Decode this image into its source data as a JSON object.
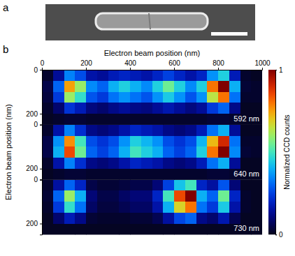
{
  "panel_labels": [
    "a",
    "b"
  ],
  "chart_data": {
    "type": "heatmap",
    "x_label": "Electron beam position (nm)",
    "y_label": "Electron beam position (nm)",
    "xlim": [
      0,
      1000
    ],
    "xticks": [
      0,
      200,
      400,
      600,
      800,
      1000
    ],
    "ylim": [
      0,
      250
    ],
    "yticks": [
      0,
      200
    ],
    "x": [
      25,
      75,
      125,
      175,
      225,
      275,
      325,
      375,
      425,
      475,
      525,
      575,
      625,
      675,
      725,
      775,
      825,
      875,
      925,
      975
    ],
    "y": [
      25,
      75,
      125,
      175,
      225
    ],
    "colorbar": {
      "label": "Normalized CCD counts",
      "range": [
        0,
        1
      ],
      "ticks": [
        0,
        1
      ]
    },
    "panels": [
      {
        "title": "592 nm",
        "cells": [
          [
            0.02,
            0.14,
            0.34,
            0.27,
            0.16,
            0.14,
            0.18,
            0.2,
            0.18,
            0.16,
            0.2,
            0.25,
            0.2,
            0.16,
            0.2,
            0.36,
            0.45,
            0.18,
            0.02,
            0.01
          ],
          [
            0.05,
            0.3,
            0.75,
            0.6,
            0.35,
            0.3,
            0.4,
            0.45,
            0.4,
            0.35,
            0.45,
            0.55,
            0.45,
            0.35,
            0.45,
            0.8,
            1.0,
            0.4,
            0.03,
            0.02
          ],
          [
            0.04,
            0.24,
            0.6,
            0.48,
            0.28,
            0.24,
            0.32,
            0.36,
            0.32,
            0.28,
            0.36,
            0.44,
            0.36,
            0.28,
            0.36,
            0.64,
            0.8,
            0.32,
            0.02,
            0.02
          ],
          [
            0.02,
            0.09,
            0.23,
            0.18,
            0.11,
            0.09,
            0.12,
            0.14,
            0.12,
            0.11,
            0.14,
            0.17,
            0.14,
            0.11,
            0.14,
            0.24,
            0.3,
            0.12,
            0.01,
            0.01
          ],
          [
            0.01,
            0.02,
            0.03,
            0.03,
            0.02,
            0.02,
            0.02,
            0.02,
            0.02,
            0.02,
            0.02,
            0.02,
            0.02,
            0.02,
            0.02,
            0.03,
            0.03,
            0.02,
            0.01,
            0.01
          ]
        ]
      },
      {
        "title": "640 nm",
        "cells": [
          [
            0.02,
            0.16,
            0.34,
            0.22,
            0.12,
            0.1,
            0.12,
            0.16,
            0.2,
            0.18,
            0.16,
            0.12,
            0.1,
            0.12,
            0.18,
            0.32,
            0.4,
            0.14,
            0.01,
            0.01
          ],
          [
            0.05,
            0.36,
            0.77,
            0.5,
            0.27,
            0.23,
            0.27,
            0.36,
            0.45,
            0.41,
            0.36,
            0.27,
            0.23,
            0.27,
            0.41,
            0.72,
            0.9,
            0.32,
            0.02,
            0.02
          ],
          [
            0.05,
            0.4,
            0.85,
            0.55,
            0.3,
            0.25,
            0.3,
            0.4,
            0.5,
            0.45,
            0.4,
            0.3,
            0.25,
            0.3,
            0.45,
            0.8,
            1.0,
            0.35,
            0.03,
            0.02
          ],
          [
            0.02,
            0.16,
            0.34,
            0.22,
            0.12,
            0.1,
            0.12,
            0.16,
            0.2,
            0.18,
            0.16,
            0.12,
            0.1,
            0.12,
            0.18,
            0.32,
            0.4,
            0.14,
            0.01,
            0.01
          ],
          [
            0.01,
            0.02,
            0.03,
            0.03,
            0.02,
            0.02,
            0.02,
            0.02,
            0.02,
            0.02,
            0.02,
            0.02,
            0.02,
            0.02,
            0.02,
            0.03,
            0.03,
            0.02,
            0.01,
            0.01
          ]
        ]
      },
      {
        "title": "730 nm",
        "cells": [
          [
            0.02,
            0.15,
            0.3,
            0.2,
            0.05,
            0.03,
            0.03,
            0.04,
            0.05,
            0.05,
            0.1,
            0.25,
            0.43,
            0.5,
            0.2,
            0.15,
            0.28,
            0.1,
            0.01,
            0.01
          ],
          [
            0.03,
            0.3,
            0.6,
            0.4,
            0.1,
            0.05,
            0.05,
            0.08,
            0.1,
            0.1,
            0.2,
            0.5,
            0.85,
            1.0,
            0.4,
            0.3,
            0.55,
            0.2,
            0.02,
            0.01
          ],
          [
            0.02,
            0.24,
            0.48,
            0.32,
            0.08,
            0.04,
            0.04,
            0.06,
            0.08,
            0.08,
            0.16,
            0.4,
            0.68,
            0.8,
            0.32,
            0.24,
            0.44,
            0.16,
            0.02,
            0.01
          ],
          [
            0.01,
            0.09,
            0.18,
            0.12,
            0.03,
            0.02,
            0.02,
            0.02,
            0.03,
            0.03,
            0.06,
            0.15,
            0.26,
            0.3,
            0.12,
            0.09,
            0.17,
            0.06,
            0.01,
            0.01
          ],
          [
            0.01,
            0.01,
            0.01,
            0.01,
            0.01,
            0.01,
            0.01,
            0.01,
            0.01,
            0.01,
            0.01,
            0.01,
            0.01,
            0.01,
            0.01,
            0.01,
            0.01,
            0.01,
            0.01,
            0.01
          ]
        ]
      }
    ]
  }
}
